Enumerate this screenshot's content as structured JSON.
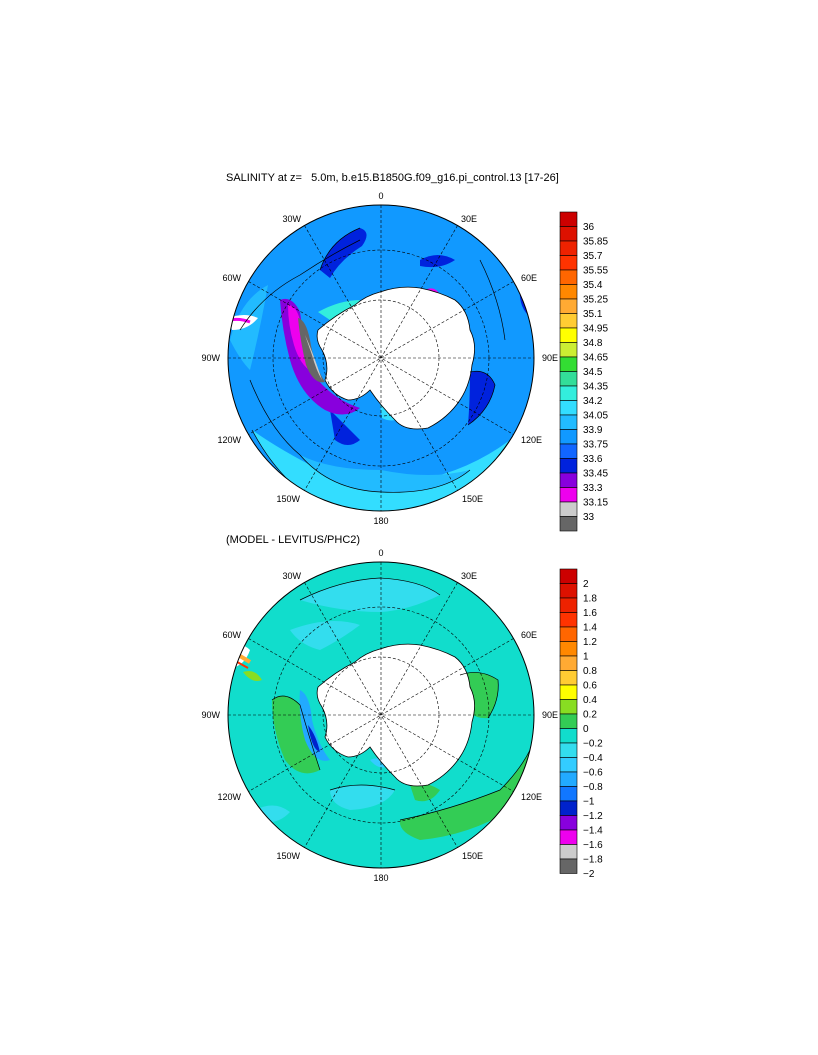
{
  "panels": [
    {
      "title": "SALINITY at z=   5.0m, b.e15.B1850G.f09_g16.pi_control.13 [17-26]",
      "lon_labels": [
        "0",
        "30E",
        "60E",
        "90E",
        "120E",
        "150E",
        "180",
        "150W",
        "120W",
        "90W",
        "60W",
        "30W"
      ],
      "colorbar": {
        "labels": [
          "36",
          "35.85",
          "35.7",
          "35.55",
          "35.4",
          "35.25",
          "35.1",
          "34.95",
          "34.8",
          "34.65",
          "34.5",
          "34.35",
          "34.2",
          "34.05",
          "33.9",
          "33.75",
          "33.6",
          "33.45",
          "33.3",
          "33.15",
          "33"
        ],
        "colors": [
          "#cc0000",
          "#dd1100",
          "#ee2200",
          "#ff3300",
          "#ff6600",
          "#ff8800",
          "#ffaa33",
          "#ffcc33",
          "#ffff00",
          "#ccee33",
          "#33dd33",
          "#33dd99",
          "#33eedd",
          "#33ddff",
          "#22bbff",
          "#1199ff",
          "#1166ff",
          "#0022dd",
          "#8800dd",
          "#ee00ee",
          "#cccccc",
          "#666666"
        ]
      }
    },
    {
      "title": "(MODEL - LEVITUS/PHC2)",
      "lon_labels": [
        "0",
        "30E",
        "60E",
        "90E",
        "120E",
        "150E",
        "180",
        "150W",
        "120W",
        "90W",
        "60W",
        "30W"
      ],
      "colorbar": {
        "labels": [
          "2",
          "1.8",
          "1.6",
          "1.4",
          "1.2",
          "1",
          "0.8",
          "0.6",
          "0.4",
          "0.2",
          "0",
          "−0.2",
          "−0.4",
          "−0.6",
          "−0.8",
          "−1",
          "−1.2",
          "−1.4",
          "−1.6",
          "−1.8",
          "−2"
        ],
        "colors": [
          "#cc0000",
          "#dd1100",
          "#ee2200",
          "#ff3300",
          "#ff6600",
          "#ff8800",
          "#ffaa33",
          "#ffcc33",
          "#ffff00",
          "#88dd22",
          "#33cc55",
          "#11ddcc",
          "#33ddee",
          "#33ccff",
          "#22aaff",
          "#1177ff",
          "#0022cc",
          "#8800dd",
          "#ee00ee",
          "#cccccc",
          "#666666"
        ]
      }
    }
  ]
}
